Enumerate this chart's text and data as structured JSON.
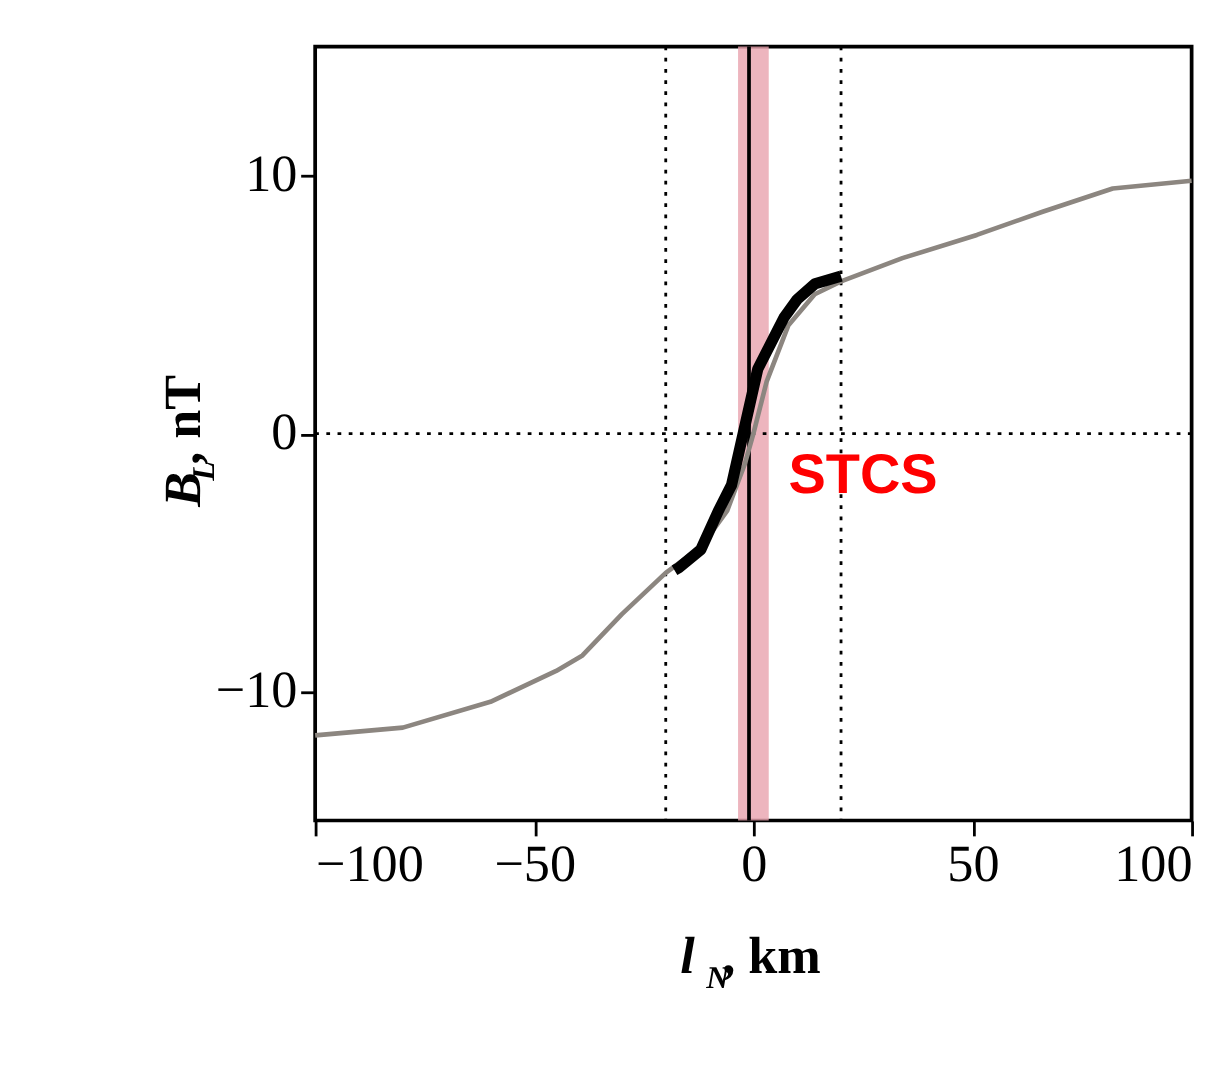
{
  "chart_data": {
    "type": "line",
    "xlabel": "l$_{N}$, km",
    "ylabel": "B$_{L}$, nT",
    "xlim": [
      -100,
      100
    ],
    "ylim": [
      -15,
      15
    ],
    "xticks": [
      -100,
      -50,
      0,
      50,
      100
    ],
    "yticks": [
      -10,
      0,
      10
    ],
    "grid": false,
    "marker": "none",
    "series": [
      {
        "color": "#8c8680",
        "x": [
          -100,
          -80,
          -60,
          -45,
          -39,
          -30,
          -20,
          -12,
          -6,
          -2,
          0,
          3,
          8,
          14,
          20,
          34,
          51,
          66,
          82,
          100
        ],
        "values": [
          -11.7,
          -11.4,
          -10.4,
          -9.2,
          -8.6,
          -7.0,
          -5.4,
          -4.4,
          -3.0,
          -1.2,
          0.0,
          2.0,
          4.2,
          5.4,
          5.9,
          6.8,
          7.7,
          8.6,
          9.5,
          9.8
        ]
      },
      {
        "color": "#000000",
        "x": [
          -18,
          -17,
          -12,
          -8,
          -5,
          -3,
          -1,
          1,
          4,
          7,
          10,
          14,
          20
        ],
        "values": [
          -5.3,
          -5.2,
          -4.5,
          -3.0,
          -2.0,
          -0.5,
          1.0,
          2.5,
          3.5,
          4.5,
          5.2,
          5.8,
          6.1
        ]
      }
    ],
    "ref_lines": [
      {
        "axis": "x",
        "value": -20,
        "line_style": "dotted",
        "color": "#000000"
      },
      {
        "axis": "x",
        "value": 20,
        "line_style": "dotted",
        "color": "#000000"
      },
      {
        "axis": "y",
        "value": 0,
        "line_style": "dotted",
        "color": "#000000"
      },
      {
        "axis": "x",
        "value": -1,
        "line_style": "solid",
        "color": "#000000"
      }
    ],
    "bands": [
      {
        "axis": "x",
        "from": -3.5,
        "to": 3.5,
        "color": "#e8a3ae"
      }
    ],
    "annotations": [
      "STCS"
    ]
  }
}
